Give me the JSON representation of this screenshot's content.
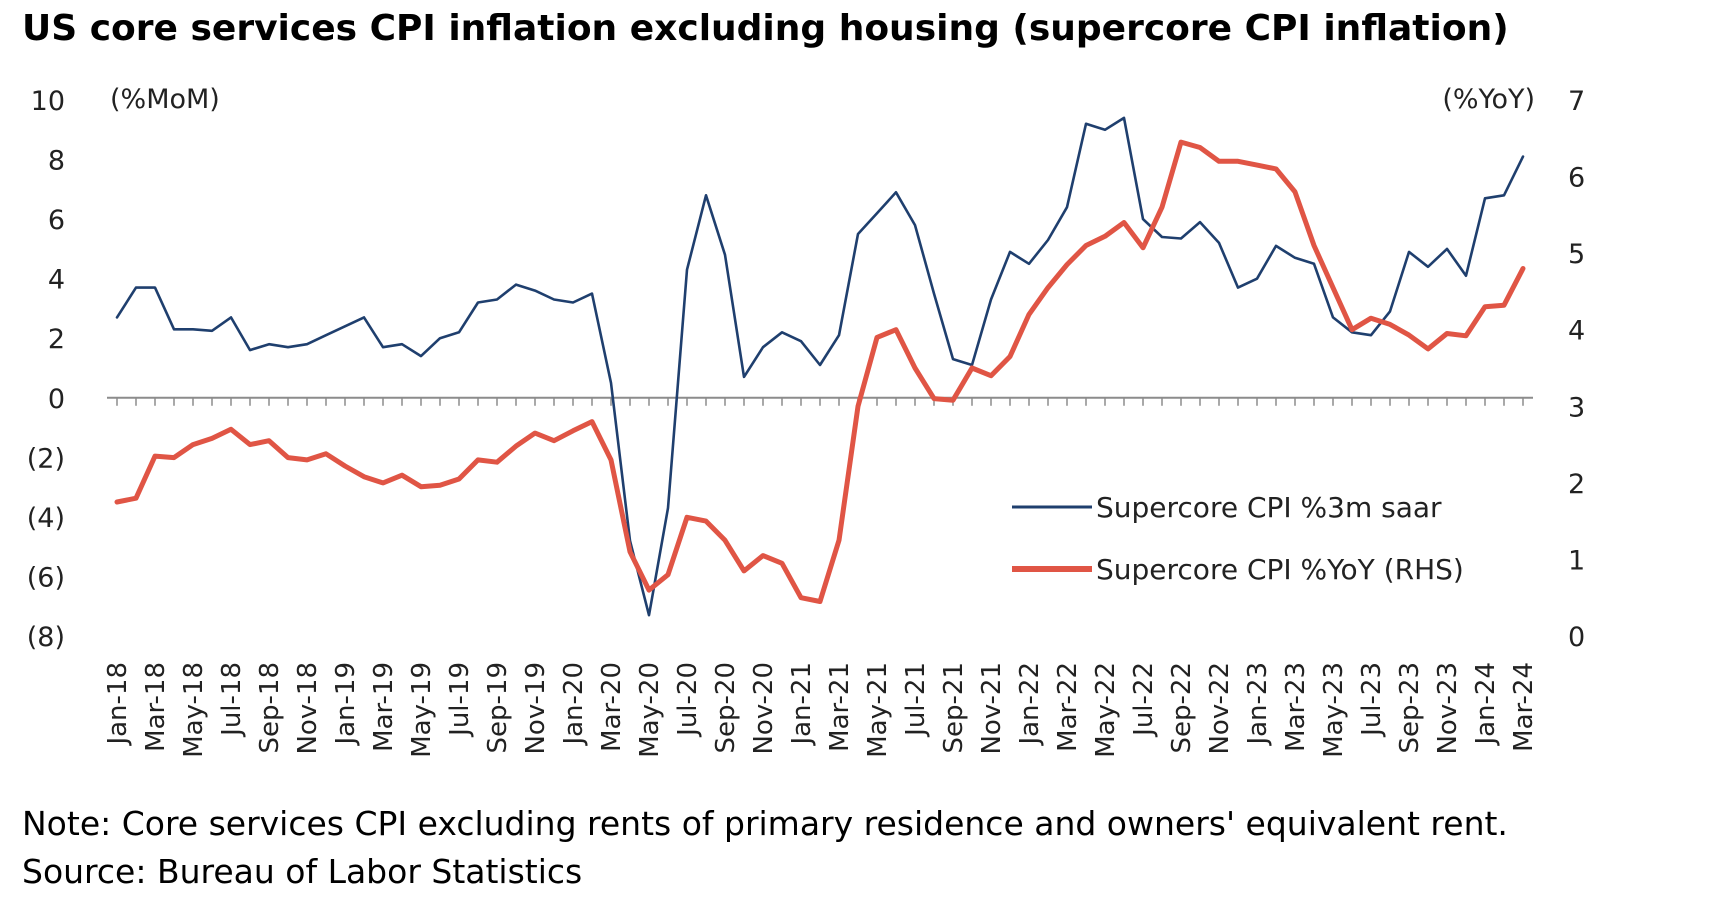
{
  "title": "US core services CPI inflation excluding housing (supercore CPI inflation)",
  "note": "Note: Core services CPI excluding rents of primary residence and owners' equivalent rent.",
  "source": "Source: Bureau of Labor Statistics",
  "chart_data": {
    "type": "line",
    "title": "US core services CPI inflation excluding housing (supercore CPI inflation)",
    "left_axis": {
      "unit_label": "(%MoM)",
      "ylim": [
        -8,
        10
      ],
      "ticks": [
        10,
        8,
        6,
        4,
        2,
        0,
        -2,
        -4,
        -6,
        -8
      ],
      "tick_labels": [
        "10",
        "8",
        "6",
        "4",
        "2",
        "0",
        "(2)",
        "(4)",
        "(6)",
        "(8)"
      ]
    },
    "right_axis": {
      "unit_label": "(%YoY)",
      "ylim": [
        0,
        7
      ],
      "ticks": [
        7,
        6,
        5,
        4,
        3,
        2,
        1,
        0
      ],
      "tick_labels": [
        "7",
        "6",
        "5",
        "4",
        "3",
        "2",
        "1",
        "0"
      ]
    },
    "x_tick_labels": [
      "Jan-18",
      "Mar-18",
      "May-18",
      "Jul-18",
      "Sep-18",
      "Nov-18",
      "Jan-19",
      "Mar-19",
      "May-19",
      "Jul-19",
      "Sep-19",
      "Nov-19",
      "Jan-20",
      "Mar-20",
      "May-20",
      "Jul-20",
      "Sep-20",
      "Nov-20",
      "Jan-21",
      "Mar-21",
      "May-21",
      "Jul-21",
      "Sep-21",
      "Nov-21",
      "Jan-22",
      "Mar-22",
      "May-22",
      "Jul-22",
      "Sep-22",
      "Nov-22",
      "Jan-23",
      "Mar-23",
      "May-23",
      "Jul-23",
      "Sep-23",
      "Nov-23",
      "Jan-24",
      "Mar-24"
    ],
    "x": [
      "Jan-18",
      "Feb-18",
      "Mar-18",
      "Apr-18",
      "May-18",
      "Jun-18",
      "Jul-18",
      "Aug-18",
      "Sep-18",
      "Oct-18",
      "Nov-18",
      "Dec-18",
      "Jan-19",
      "Feb-19",
      "Mar-19",
      "Apr-19",
      "May-19",
      "Jun-19",
      "Jul-19",
      "Aug-19",
      "Sep-19",
      "Oct-19",
      "Nov-19",
      "Dec-19",
      "Jan-20",
      "Feb-20",
      "Mar-20",
      "Apr-20",
      "May-20",
      "Jun-20",
      "Jul-20",
      "Aug-20",
      "Sep-20",
      "Oct-20",
      "Nov-20",
      "Dec-20",
      "Jan-21",
      "Feb-21",
      "Mar-21",
      "Apr-21",
      "May-21",
      "Jun-21",
      "Jul-21",
      "Aug-21",
      "Sep-21",
      "Oct-21",
      "Nov-21",
      "Dec-21",
      "Jan-22",
      "Feb-22",
      "Mar-22",
      "Apr-22",
      "May-22",
      "Jun-22",
      "Jul-22",
      "Aug-22",
      "Sep-22",
      "Oct-22",
      "Nov-22",
      "Dec-22",
      "Jan-23",
      "Feb-23",
      "Mar-23",
      "Apr-23",
      "May-23",
      "Jun-23",
      "Jul-23",
      "Aug-23",
      "Sep-23",
      "Oct-23",
      "Nov-23",
      "Dec-23",
      "Jan-24",
      "Feb-24",
      "Mar-24"
    ],
    "series": [
      {
        "name": "Supercore CPI %3m saar",
        "axis": "left",
        "color": "#1f3f6e",
        "values": [
          2.7,
          3.7,
          3.7,
          2.3,
          2.3,
          2.25,
          2.7,
          1.6,
          1.8,
          1.7,
          1.8,
          2.1,
          2.4,
          2.7,
          1.7,
          1.8,
          1.4,
          2.0,
          2.2,
          3.2,
          3.3,
          3.8,
          3.6,
          3.3,
          3.2,
          3.5,
          0.5,
          -4.8,
          -7.3,
          -3.7,
          4.3,
          6.8,
          4.8,
          0.7,
          1.7,
          2.2,
          1.9,
          1.1,
          2.1,
          5.5,
          6.2,
          6.9,
          5.8,
          3.5,
          1.3,
          1.1,
          3.3,
          4.9,
          4.5,
          5.3,
          6.4,
          9.2,
          9.0,
          9.4,
          6.0,
          5.4,
          5.35,
          5.9,
          5.2,
          3.7,
          4.0,
          5.1,
          4.7,
          4.5,
          2.7,
          2.2,
          2.1,
          2.9,
          4.9,
          4.4,
          5.0,
          4.1,
          6.7,
          6.8,
          8.1
        ]
      },
      {
        "name": "Supercore CPI %YoY (RHS)",
        "axis": "right",
        "color": "#e05545",
        "values": [
          1.75,
          1.8,
          2.35,
          2.33,
          2.5,
          2.58,
          2.7,
          2.5,
          2.55,
          2.33,
          2.3,
          2.38,
          2.22,
          2.08,
          2.0,
          2.1,
          1.95,
          1.97,
          2.05,
          2.3,
          2.27,
          2.48,
          2.65,
          2.55,
          2.68,
          2.8,
          2.3,
          1.1,
          0.6,
          0.8,
          1.55,
          1.5,
          1.25,
          0.85,
          1.05,
          0.95,
          0.5,
          0.45,
          1.25,
          3.0,
          3.9,
          4.0,
          3.5,
          3.1,
          3.08,
          3.5,
          3.4,
          3.65,
          4.2,
          4.55,
          4.85,
          5.1,
          5.22,
          5.4,
          5.07,
          5.6,
          6.45,
          6.38,
          6.2,
          6.2,
          6.15,
          6.1,
          5.8,
          5.1,
          4.55,
          4.0,
          4.15,
          4.07,
          3.93,
          3.75,
          3.95,
          3.92,
          4.3,
          4.32,
          4.8
        ]
      }
    ],
    "legend_position": "lower-right",
    "grid": false
  }
}
